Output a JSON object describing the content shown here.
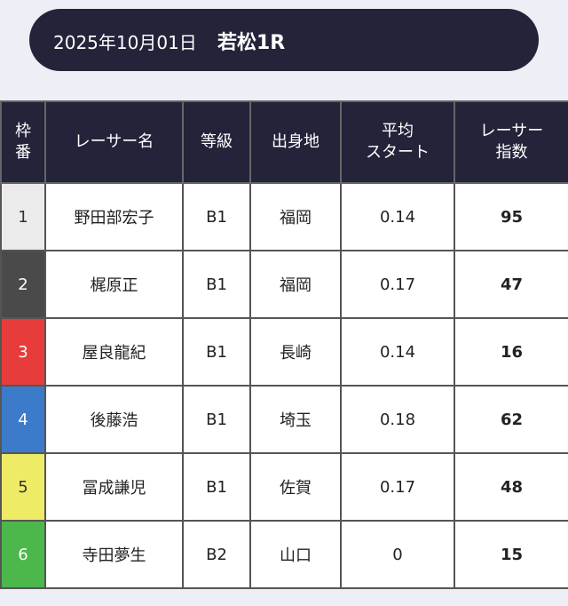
{
  "header": {
    "date": "2025年10月01日",
    "race": "若松1R"
  },
  "table": {
    "columns": [
      "枠\n番",
      "レーサー名",
      "等級",
      "出身地",
      "平均\nスタート",
      "レーサー\n指数"
    ],
    "rows": [
      [
        1,
        "野田部宏子",
        "B1",
        "福岡",
        0.14,
        95
      ],
      [
        2,
        "梶原正",
        "B1",
        "福岡",
        0.17,
        47
      ],
      [
        3,
        "屋良龍紀",
        "B1",
        "長崎",
        0.14,
        16
      ],
      [
        4,
        "後藤浩",
        "B1",
        "埼玉",
        0.18,
        62
      ],
      [
        5,
        "冨成謙児",
        "B1",
        "佐賀",
        0.17,
        48
      ],
      [
        6,
        "寺田夢生",
        "B2",
        "山口",
        0,
        15
      ]
    ]
  }
}
